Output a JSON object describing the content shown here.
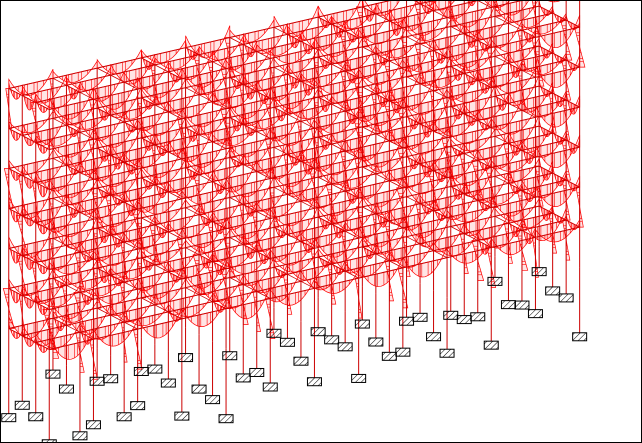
{
  "view": {
    "background": "#ffffff",
    "border_color": "#000000"
  },
  "colors": {
    "member_line": "#cc0000",
    "diagram_fill": "#ff0000",
    "support_line": "#000000",
    "support_hatch": "#000000",
    "support_fill": "#ffffff"
  },
  "model": {
    "kind": "3D building frame bending moment diagram",
    "storeys": 7,
    "bays_along": 12,
    "bays_across": 3,
    "support_symbol": "fixed-support-hatched-box"
  }
}
